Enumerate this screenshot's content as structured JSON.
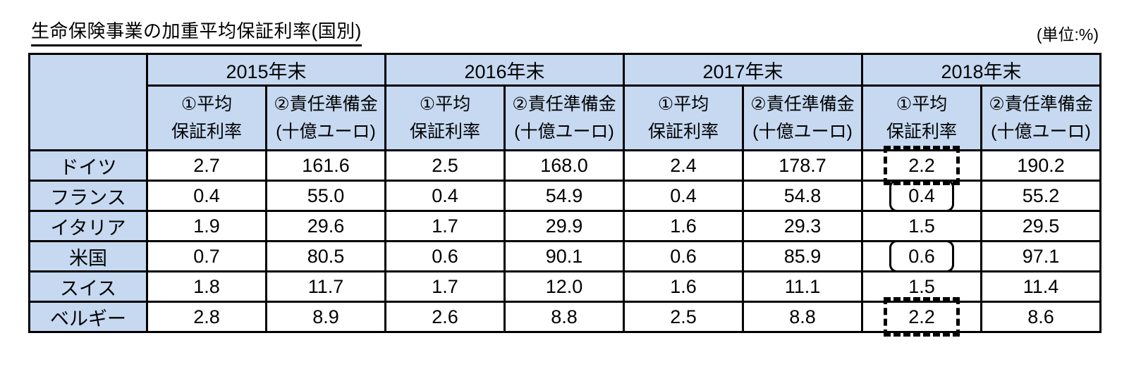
{
  "page": {
    "title": "生命保険事業の加重平均保証利率(国別)",
    "unit_label": "(単位:%)"
  },
  "colors": {
    "header_fill": "#c6d9f1",
    "border": "#000000",
    "background": "#ffffff"
  },
  "table": {
    "corner_label": "",
    "years": [
      "2015年末",
      "2016年末",
      "2017年末",
      "2018年末"
    ],
    "subheaders": {
      "rate_line1": "①平均",
      "rate_line2": "保証利率",
      "reserve_line1": "②責任準備金",
      "reserve_line2": "(十億ユーロ)"
    },
    "rows": [
      {
        "label": "ドイツ",
        "values": [
          "2.7",
          "161.6",
          "2.5",
          "168.0",
          "2.4",
          "178.7",
          "2.2",
          "190.2"
        ],
        "highlight_2018_rate": "dashed"
      },
      {
        "label": "フランス",
        "values": [
          "0.4",
          "55.0",
          "0.4",
          "54.9",
          "0.4",
          "54.8",
          "0.4",
          "55.2"
        ],
        "highlight_2018_rate": "solid-rounded"
      },
      {
        "label": "イタリア",
        "values": [
          "1.9",
          "29.6",
          "1.7",
          "29.9",
          "1.6",
          "29.3",
          "1.5",
          "29.5"
        ],
        "highlight_2018_rate": "none"
      },
      {
        "label": "米国",
        "values": [
          "0.7",
          "80.5",
          "0.6",
          "90.1",
          "0.6",
          "85.9",
          "0.6",
          "97.1"
        ],
        "highlight_2018_rate": "solid-rounded"
      },
      {
        "label": "スイス",
        "values": [
          "1.8",
          "11.7",
          "1.7",
          "12.0",
          "1.6",
          "11.1",
          "1.5",
          "11.4"
        ],
        "highlight_2018_rate": "none"
      },
      {
        "label": "ベルギー",
        "values": [
          "2.8",
          "8.9",
          "2.6",
          "8.8",
          "2.5",
          "8.8",
          "2.2",
          "8.6"
        ],
        "highlight_2018_rate": "dashed"
      }
    ]
  }
}
